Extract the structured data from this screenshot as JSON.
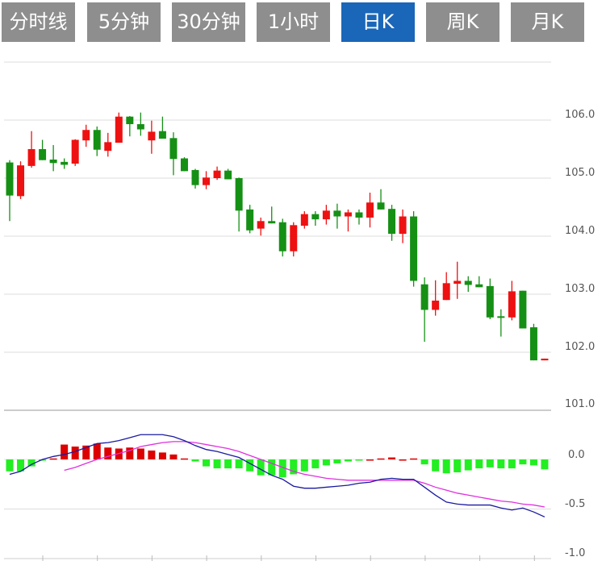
{
  "tabs": [
    {
      "label": "分时线",
      "active": false
    },
    {
      "label": "5分钟",
      "active": false
    },
    {
      "label": "30分钟",
      "active": false
    },
    {
      "label": "1小时",
      "active": false
    },
    {
      "label": "日K",
      "active": true
    },
    {
      "label": "周K",
      "active": false
    },
    {
      "label": "月K",
      "active": false
    }
  ],
  "colors": {
    "active_tab": "#1a66b8",
    "tab": "#8e8e8e",
    "up": "#ee1111",
    "down": "#159015",
    "macd_up": "#dd0000",
    "macd_down": "#22ee22",
    "dif": "#1a1aa0",
    "dea": "#e030e0"
  },
  "chart_data": [
    {
      "type": "candlestick",
      "title": "",
      "ylim": [
        101.0,
        107.0
      ],
      "yticks": [
        "106.0",
        "105.0",
        "104.0",
        "103.0",
        "102.0",
        "101.0"
      ],
      "grid": true,
      "ohlc": [
        [
          105.27,
          104.7,
          105.31,
          104.26
        ],
        [
          104.69,
          105.22,
          105.29,
          104.64
        ],
        [
          105.21,
          105.5,
          105.81,
          105.18
        ],
        [
          105.5,
          105.31,
          105.66,
          105.31
        ],
        [
          105.32,
          105.26,
          105.57,
          105.12
        ],
        [
          105.28,
          105.23,
          105.34,
          105.16
        ],
        [
          105.25,
          105.66,
          105.67,
          105.21
        ],
        [
          105.65,
          105.83,
          105.92,
          105.54
        ],
        [
          105.83,
          105.49,
          105.89,
          105.38
        ],
        [
          105.47,
          105.62,
          105.78,
          105.37
        ],
        [
          105.61,
          106.06,
          106.13,
          105.61
        ],
        [
          106.06,
          105.93,
          106.07,
          105.72
        ],
        [
          105.93,
          105.84,
          106.13,
          105.73
        ],
        [
          105.65,
          105.8,
          105.99,
          105.42
        ],
        [
          105.81,
          105.68,
          106.06,
          105.68
        ],
        [
          105.69,
          105.33,
          105.79,
          105.05
        ],
        [
          105.34,
          105.12,
          105.36,
          105.12
        ],
        [
          105.14,
          104.88,
          105.16,
          104.82
        ],
        [
          104.88,
          105.01,
          105.12,
          104.81
        ],
        [
          105.0,
          105.13,
          105.2,
          104.97
        ],
        [
          105.13,
          104.98,
          105.16,
          104.98
        ],
        [
          105.0,
          104.44,
          105.01,
          104.08
        ],
        [
          104.46,
          104.1,
          104.54,
          104.05
        ],
        [
          104.13,
          104.26,
          104.32,
          104.01
        ],
        [
          104.26,
          104.22,
          104.51,
          104.22
        ],
        [
          104.24,
          103.74,
          104.3,
          103.65
        ],
        [
          103.74,
          104.19,
          104.24,
          103.65
        ],
        [
          104.18,
          104.38,
          104.43,
          104.13
        ],
        [
          104.38,
          104.29,
          104.43,
          104.18
        ],
        [
          104.29,
          104.44,
          104.54,
          104.2
        ],
        [
          104.44,
          104.34,
          104.56,
          104.13
        ],
        [
          104.34,
          104.41,
          104.46,
          104.08
        ],
        [
          104.41,
          104.32,
          104.46,
          104.2
        ],
        [
          104.32,
          104.58,
          104.75,
          104.15
        ],
        [
          104.58,
          104.46,
          104.81,
          104.46
        ],
        [
          104.47,
          104.04,
          104.54,
          103.92
        ],
        [
          104.04,
          104.34,
          104.46,
          103.88
        ],
        [
          104.34,
          103.23,
          104.43,
          103.13
        ],
        [
          103.17,
          102.73,
          103.29,
          102.18
        ],
        [
          102.73,
          102.89,
          103.24,
          102.63
        ],
        [
          102.9,
          103.19,
          103.38,
          102.9
        ],
        [
          103.18,
          103.23,
          103.56,
          102.92
        ],
        [
          103.23,
          103.16,
          103.31,
          103.04
        ],
        [
          103.17,
          103.12,
          103.31,
          103.12
        ],
        [
          103.14,
          102.6,
          103.27,
          102.57
        ],
        [
          102.62,
          102.6,
          102.74,
          102.27
        ],
        [
          102.6,
          103.05,
          103.23,
          102.55
        ],
        [
          103.06,
          102.41,
          103.06,
          102.41
        ],
        [
          102.43,
          101.86,
          102.49,
          101.86
        ],
        [
          101.86,
          101.89,
          101.89,
          101.86
        ]
      ]
    },
    {
      "type": "bar+line",
      "title": "",
      "ylim": [
        -1.0,
        0.5
      ],
      "yticks": [
        "0.0",
        "-0.5",
        "-1.0"
      ],
      "histogram": [
        -0.12,
        -0.12,
        -0.07,
        -0.01,
        0.01,
        0.15,
        0.13,
        0.14,
        0.16,
        0.12,
        0.11,
        0.12,
        0.11,
        0.09,
        0.07,
        0.05,
        0.01,
        -0.02,
        -0.07,
        -0.09,
        -0.09,
        -0.09,
        -0.12,
        -0.16,
        -0.16,
        -0.18,
        -0.15,
        -0.12,
        -0.09,
        -0.06,
        -0.04,
        -0.02,
        -0.01,
        0.0,
        0.01,
        0.02,
        0.0,
        0.01,
        -0.05,
        -0.12,
        -0.14,
        -0.13,
        -0.11,
        -0.09,
        -0.08,
        -0.09,
        -0.09,
        -0.05,
        -0.06,
        -0.1
      ],
      "dif": [
        -0.15,
        -0.12,
        -0.05,
        0.0,
        0.03,
        0.05,
        0.08,
        0.12,
        0.16,
        0.17,
        0.19,
        0.22,
        0.25,
        0.25,
        0.25,
        0.23,
        0.19,
        0.14,
        0.1,
        0.08,
        0.05,
        0.02,
        -0.04,
        -0.1,
        -0.16,
        -0.2,
        -0.27,
        -0.29,
        -0.29,
        -0.28,
        -0.27,
        -0.26,
        -0.24,
        -0.23,
        -0.2,
        -0.19,
        -0.2,
        -0.2,
        -0.28,
        -0.36,
        -0.43,
        -0.45,
        -0.46,
        -0.46,
        -0.46,
        -0.49,
        -0.51,
        -0.49,
        -0.53,
        -0.58
      ],
      "dea": [
        null,
        null,
        null,
        null,
        null,
        -0.11,
        -0.08,
        -0.04,
        0.0,
        0.03,
        0.06,
        0.09,
        0.13,
        0.15,
        0.17,
        0.18,
        0.18,
        0.17,
        0.15,
        0.13,
        0.11,
        0.08,
        0.04,
        0.0,
        -0.04,
        -0.08,
        -0.12,
        -0.15,
        -0.17,
        -0.19,
        -0.2,
        -0.21,
        -0.21,
        -0.21,
        -0.21,
        -0.21,
        -0.21,
        -0.21,
        -0.24,
        -0.28,
        -0.31,
        -0.34,
        -0.36,
        -0.38,
        -0.4,
        -0.42,
        -0.43,
        -0.45,
        -0.46,
        -0.48
      ]
    }
  ]
}
